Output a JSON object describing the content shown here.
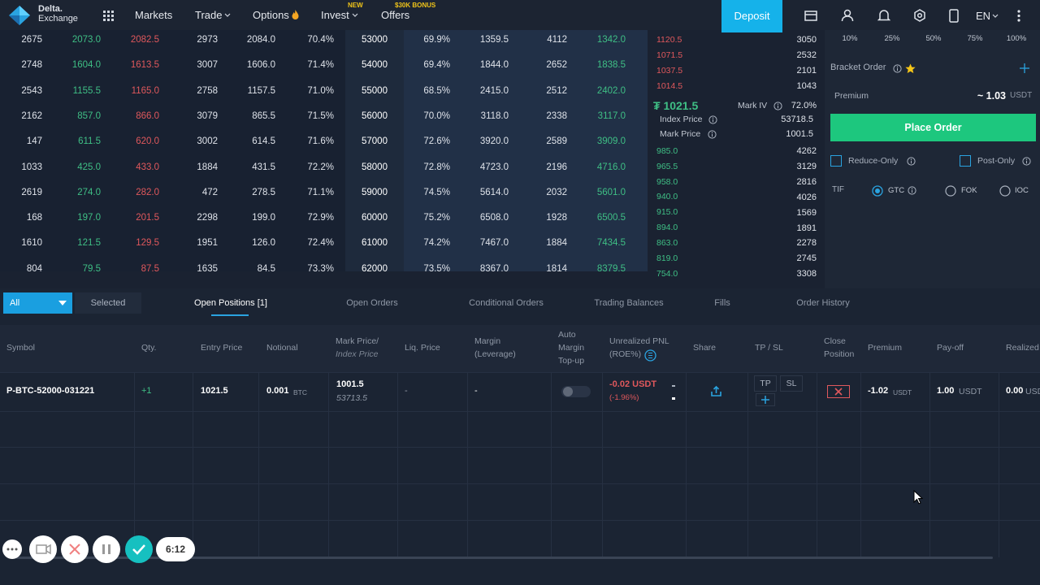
{
  "nav": {
    "logo_line1": "Delta.",
    "logo_line2": "Exchange",
    "items": [
      "Markets",
      "Trade",
      "Options",
      "Invest",
      "Offers"
    ],
    "badge_invest": "NEW",
    "badge_offers": "$30K BONUS",
    "deposit": "Deposit",
    "language": "EN"
  },
  "option_chain": {
    "rows": [
      [
        "2675",
        "2073.0",
        "2082.5",
        "2973",
        "2084.0",
        "70.4%",
        "53000",
        "69.9%",
        "1359.5",
        "4112",
        "1342.0"
      ],
      [
        "2748",
        "1604.0",
        "1613.5",
        "3007",
        "1606.0",
        "71.4%",
        "54000",
        "69.4%",
        "1844.0",
        "2652",
        "1838.5"
      ],
      [
        "2543",
        "1155.5",
        "1165.0",
        "2758",
        "1157.5",
        "71.0%",
        "55000",
        "68.5%",
        "2415.0",
        "2512",
        "2402.0"
      ],
      [
        "2162",
        "857.0",
        "866.0",
        "3079",
        "865.5",
        "71.5%",
        "56000",
        "70.0%",
        "3118.0",
        "2338",
        "3117.0"
      ],
      [
        "147",
        "611.5",
        "620.0",
        "3002",
        "614.5",
        "71.6%",
        "57000",
        "72.6%",
        "3920.0",
        "2589",
        "3909.0"
      ],
      [
        "1033",
        "425.0",
        "433.0",
        "1884",
        "431.5",
        "72.2%",
        "58000",
        "72.8%",
        "4723.0",
        "2196",
        "4716.0"
      ],
      [
        "2619",
        "274.0",
        "282.0",
        "472",
        "278.5",
        "71.1%",
        "59000",
        "74.5%",
        "5614.0",
        "2032",
        "5601.0"
      ],
      [
        "168",
        "197.0",
        "201.5",
        "2298",
        "199.0",
        "72.9%",
        "60000",
        "75.2%",
        "6508.0",
        "1928",
        "6500.5"
      ],
      [
        "1610",
        "121.5",
        "129.5",
        "1951",
        "126.0",
        "72.4%",
        "61000",
        "74.2%",
        "7467.0",
        "1884",
        "7434.5"
      ],
      [
        "804",
        "79.5",
        "87.5",
        "1635",
        "84.5",
        "73.3%",
        "62000",
        "73.5%",
        "8367.0",
        "1814",
        "8379.5"
      ]
    ]
  },
  "order_book": {
    "asks": [
      [
        "1120.5",
        "3050"
      ],
      [
        "1071.5",
        "2532"
      ],
      [
        "1037.5",
        "2101"
      ],
      [
        "1014.5",
        "1043"
      ]
    ],
    "last_price": "₮ 1021.5",
    "mark_iv_label": "Mark IV",
    "mark_iv": "72.0%",
    "index_price_label": "Index Price",
    "index_price": "53718.5",
    "mark_price_label": "Mark Price",
    "mark_price": "1001.5",
    "bids": [
      [
        "985.0",
        "4262"
      ],
      [
        "965.5",
        "3129"
      ],
      [
        "958.0",
        "2816"
      ],
      [
        "940.0",
        "4026"
      ],
      [
        "915.0",
        "1569"
      ],
      [
        "894.0",
        "1891"
      ],
      [
        "863.0",
        "2278"
      ],
      [
        "819.0",
        "2745"
      ],
      [
        "754.0",
        "3308"
      ]
    ]
  },
  "order_form": {
    "percentages": [
      "10%",
      "25%",
      "50%",
      "75%",
      "100%"
    ],
    "bracket_order": "Bracket Order",
    "premium_label": "Premium",
    "premium_value": "~ 1.03",
    "premium_unit": "USDT",
    "place_order": "Place Order",
    "reduce_only": "Reduce-Only",
    "post_only": "Post-Only",
    "tif_label": "TIF",
    "tif_options": [
      "GTC",
      "FOK",
      "IOC"
    ]
  },
  "positions": {
    "filters": [
      "All",
      "Selected"
    ],
    "tabs": [
      "Open Positions [1]",
      "Open Orders",
      "Conditional Orders",
      "Trading Balances",
      "Fills",
      "Order History"
    ],
    "columns": [
      [
        "Symbol"
      ],
      [
        "Qty."
      ],
      [
        "Entry Price"
      ],
      [
        "Notional"
      ],
      [
        "Mark Price/",
        "Index Price"
      ],
      [
        "Liq. Price"
      ],
      [
        "Margin",
        "(Leverage)"
      ],
      [
        "Auto",
        "Margin",
        "Top-up"
      ],
      [
        "Unrealized PNL",
        "(ROE%)"
      ],
      [
        "Share"
      ],
      [
        "TP / SL"
      ],
      [
        "Close",
        "Position"
      ],
      [
        "Premium"
      ],
      [
        "Pay-off"
      ],
      [
        "Realized"
      ]
    ],
    "row": {
      "symbol": "P-BTC-52000-031221",
      "qty": "+1",
      "entry_price": "1021.5",
      "notional": "0.001",
      "notional_unit": "BTC",
      "mark_price": "1001.5",
      "index_price": "53713.5",
      "liq_price": "-",
      "margin": "-",
      "unrealized_pnl": "-0.02 USDT",
      "roe": "(-1.96%)",
      "tp": "TP",
      "sl": "SL",
      "premium": "-1.02",
      "premium_unit": "USDT",
      "payoff": "1.00",
      "payoff_unit": "USDT",
      "realized": "0.00",
      "realized_unit": "USDT"
    }
  },
  "recorder": {
    "time": "6:12"
  }
}
